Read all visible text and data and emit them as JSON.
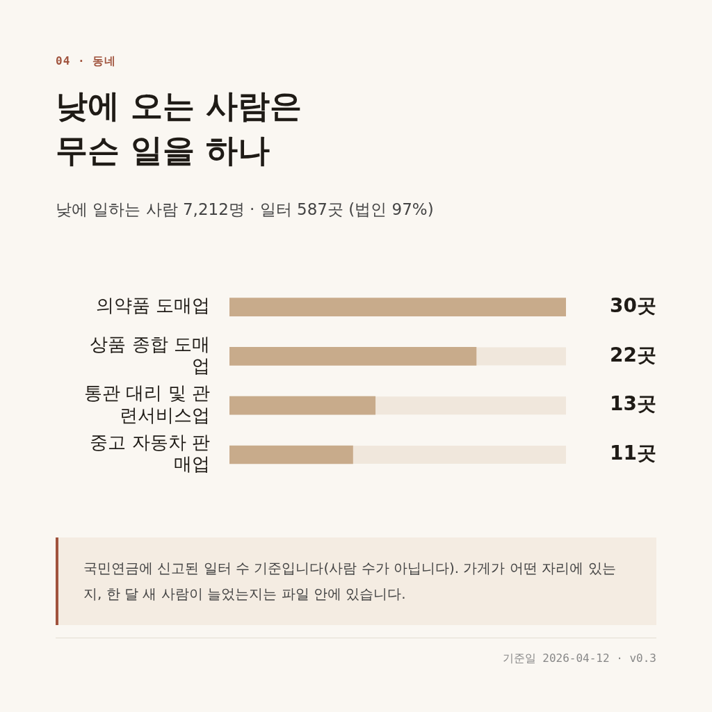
{
  "chart_data": {
    "type": "bar",
    "orientation": "horizontal",
    "title": "낮에 오는 사람은 무슨 일을 하나",
    "subtitle": "낮에 일하는 사람 7,212명 · 일터 587곳 (법인 97%)",
    "categories": [
      "의약품 도매업",
      "상품 종합 도매업",
      "통관 대리 및 관련서비스업",
      "중고 자동차 판매업"
    ],
    "values": [
      30,
      22,
      13,
      11
    ],
    "color": "#c8ab8b",
    "value_labels": [
      "30곳",
      "22곳",
      "13곳",
      "11곳"
    ],
    "xlim": [
      0,
      30
    ],
    "tick_labels": "y",
    "annotations": [
      "04 · 동네",
      "국민연금에 신고된 일터 수 기준입니다(사람 수가 아닙니다). 가게가 어떤 자리에 있는지, 한 달 새 사람이 늘었는지는 파일 안에 있습니다.",
      "기준일 2026-04-12 · v0.3"
    ]
  }
}
